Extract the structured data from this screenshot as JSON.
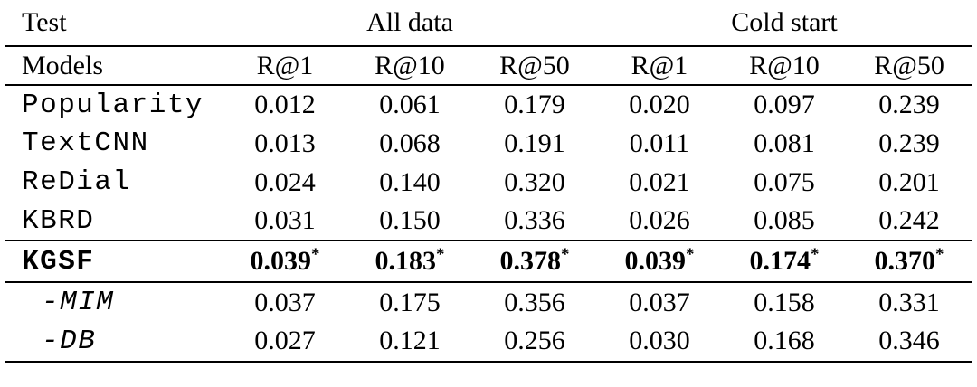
{
  "page": {
    "background_color": "#ffffff",
    "text_color": "#000000",
    "rule_color": "#000000"
  },
  "table": {
    "corner_label": "Test",
    "models_label": "Models",
    "col_groups": [
      {
        "label": "All data",
        "metrics": [
          "R@1",
          "R@10",
          "R@50"
        ]
      },
      {
        "label": "Cold start",
        "metrics": [
          "R@1",
          "R@10",
          "R@50"
        ]
      }
    ],
    "significance_marker": "*",
    "rows": [
      {
        "model": "Popularity",
        "values": [
          "0.012",
          "0.061",
          "0.179",
          "0.020",
          "0.097",
          "0.239"
        ]
      },
      {
        "model": "TextCNN",
        "values": [
          "0.013",
          "0.068",
          "0.191",
          "0.011",
          "0.081",
          "0.239"
        ]
      },
      {
        "model": "ReDial",
        "values": [
          "0.024",
          "0.140",
          "0.320",
          "0.021",
          "0.075",
          "0.201"
        ]
      },
      {
        "model": "KBRD",
        "values": [
          "0.031",
          "0.150",
          "0.336",
          "0.026",
          "0.085",
          "0.242"
        ]
      },
      {
        "model": "KGSF",
        "values": [
          "0.039",
          "0.183",
          "0.378",
          "0.039",
          "0.174",
          "0.370"
        ]
      },
      {
        "model": "-MIM",
        "values": [
          "0.037",
          "0.175",
          "0.356",
          "0.037",
          "0.158",
          "0.331"
        ]
      },
      {
        "model": "-DB",
        "values": [
          "0.027",
          "0.121",
          "0.256",
          "0.030",
          "0.168",
          "0.346"
        ]
      }
    ]
  }
}
